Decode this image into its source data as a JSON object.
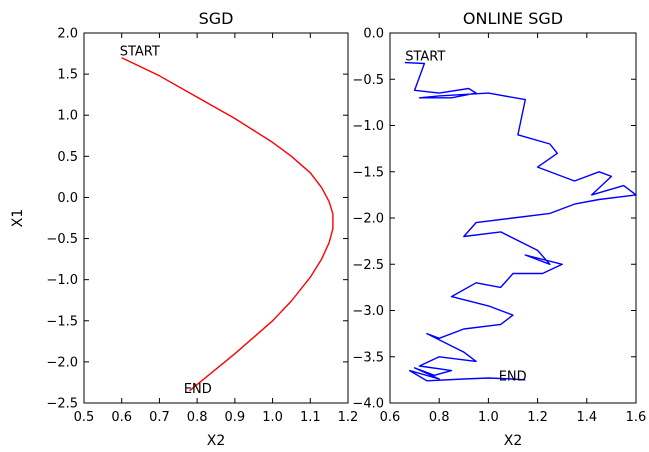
{
  "chart_data": [
    {
      "type": "line",
      "title": "SGD",
      "xlabel": "X2",
      "ylabel": "X1",
      "xlim": [
        0.5,
        1.2
      ],
      "ylim": [
        -2.5,
        2.0
      ],
      "xticks": [
        0.5,
        0.6,
        0.7,
        0.8,
        0.9,
        1.0,
        1.1,
        1.2
      ],
      "xtick_labels": [
        "0.5",
        "0.6",
        "0.7",
        "0.8",
        "0.9",
        "1.0",
        "1.1",
        "1.2"
      ],
      "yticks": [
        2.0,
        1.5,
        1.0,
        0.5,
        0.0,
        -0.5,
        -1.0,
        -1.5,
        -2.0,
        -2.5
      ],
      "ytick_labels": [
        "2.0",
        "1.5",
        "1.0",
        "0.5",
        "0.0",
        "−0.5",
        "−1.0",
        "−1.5",
        "−2.0",
        "−2.5"
      ],
      "series": [
        {
          "color": "#ff0000",
          "x": [
            0.6,
            0.7,
            0.8,
            0.9,
            1.0,
            1.05,
            1.1,
            1.13,
            1.15,
            1.16,
            1.16,
            1.15,
            1.13,
            1.1,
            1.05,
            1.0,
            0.9,
            0.78
          ],
          "y": [
            1.7,
            1.48,
            1.22,
            0.96,
            0.67,
            0.5,
            0.3,
            0.12,
            -0.05,
            -0.2,
            -0.38,
            -0.55,
            -0.75,
            -0.97,
            -1.26,
            -1.5,
            -1.9,
            -2.35
          ]
        }
      ],
      "annotations": [
        {
          "text": "START",
          "x": 0.6,
          "y": 1.7
        },
        {
          "text": "END",
          "x": 0.77,
          "y": -2.4
        }
      ],
      "grid": false
    },
    {
      "type": "line",
      "title": "ONLINE SGD",
      "xlabel": "X2",
      "ylabel": "",
      "xlim": [
        0.6,
        1.6
      ],
      "ylim": [
        -4.0,
        0.0
      ],
      "xticks": [
        0.6,
        0.8,
        1.0,
        1.2,
        1.4,
        1.6
      ],
      "xtick_labels": [
        "0.6",
        "0.8",
        "1.0",
        "1.2",
        "1.4",
        "1.6"
      ],
      "yticks": [
        0.0,
        -0.5,
        -1.0,
        -1.5,
        -2.0,
        -2.5,
        -3.0,
        -3.5,
        -4.0
      ],
      "ytick_labels": [
        "0.0",
        "−0.5",
        "−1.0",
        "−1.5",
        "−2.0",
        "−2.5",
        "−3.0",
        "−3.5",
        "−4.0"
      ],
      "series": [
        {
          "color": "#0000ff",
          "x": [
            0.66,
            0.74,
            0.7,
            0.8,
            0.92,
            0.95,
            0.85,
            0.72,
            0.8,
            1.0,
            1.15,
            1.12,
            1.25,
            1.28,
            1.2,
            1.35,
            1.45,
            1.5,
            1.42,
            1.55,
            1.6,
            1.45,
            1.35,
            1.25,
            1.1,
            0.95,
            0.9,
            1.05,
            1.2,
            1.25,
            1.15,
            1.3,
            1.22,
            1.1,
            1.05,
            0.95,
            0.85,
            1.0,
            1.1,
            1.05,
            0.9,
            0.8,
            0.75,
            0.9,
            0.95,
            0.8,
            0.72,
            0.85,
            0.78,
            0.7,
            0.8,
            0.68,
            0.75,
            0.9,
            1.0,
            1.1,
            1.15
          ],
          "y": [
            -0.32,
            -0.33,
            -0.62,
            -0.65,
            -0.6,
            -0.65,
            -0.7,
            -0.7,
            -0.68,
            -0.65,
            -0.72,
            -1.1,
            -1.2,
            -1.3,
            -1.45,
            -1.6,
            -1.5,
            -1.55,
            -1.75,
            -1.65,
            -1.75,
            -1.8,
            -1.85,
            -1.95,
            -2.0,
            -2.05,
            -2.2,
            -2.15,
            -2.35,
            -2.5,
            -2.4,
            -2.5,
            -2.6,
            -2.6,
            -2.75,
            -2.7,
            -2.85,
            -2.95,
            -3.05,
            -3.15,
            -3.2,
            -3.3,
            -3.25,
            -3.45,
            -3.55,
            -3.5,
            -3.6,
            -3.65,
            -3.7,
            -3.62,
            -3.74,
            -3.65,
            -3.76,
            -3.74,
            -3.73,
            -3.74,
            -3.75
          ]
        }
      ],
      "annotations": [
        {
          "text": "START",
          "x": 0.67,
          "y": -0.32
        },
        {
          "text": "END",
          "x": 1.05,
          "y": -3.78
        }
      ],
      "grid": false
    }
  ]
}
